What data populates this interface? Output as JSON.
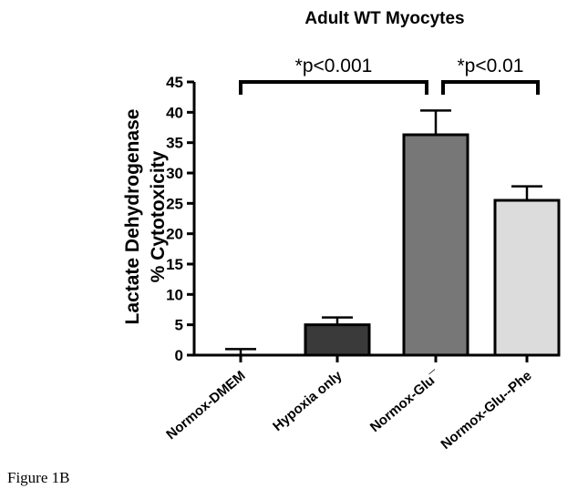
{
  "caption": "Figure 1B",
  "chart_data": {
    "type": "bar",
    "title": "Adult WT Myocytes",
    "ylabel_line1": "Lactate  Dehydrogenase",
    "ylabel_line2": "%  Cytotoxicity",
    "ylim": [
      0,
      45
    ],
    "yticks": [
      0,
      5,
      10,
      15,
      20,
      25,
      30,
      35,
      40,
      45
    ],
    "categories": [
      "Normox-DMEM",
      "Hypoxia only",
      "Normox-Glu¯",
      "Normox-Glu--Phe"
    ],
    "values": [
      0,
      5,
      36.3,
      25.5
    ],
    "errors": [
      1,
      1.2,
      4,
      2.3
    ],
    "colors": [
      "#ffffff",
      "#3a3a3a",
      "#777777",
      "#dcdcdc"
    ],
    "grid": false,
    "significance": [
      {
        "from": 0,
        "to": 2,
        "label": "*p<0.001"
      },
      {
        "from": 2,
        "to": 3,
        "label": "*p<0.01"
      }
    ]
  }
}
